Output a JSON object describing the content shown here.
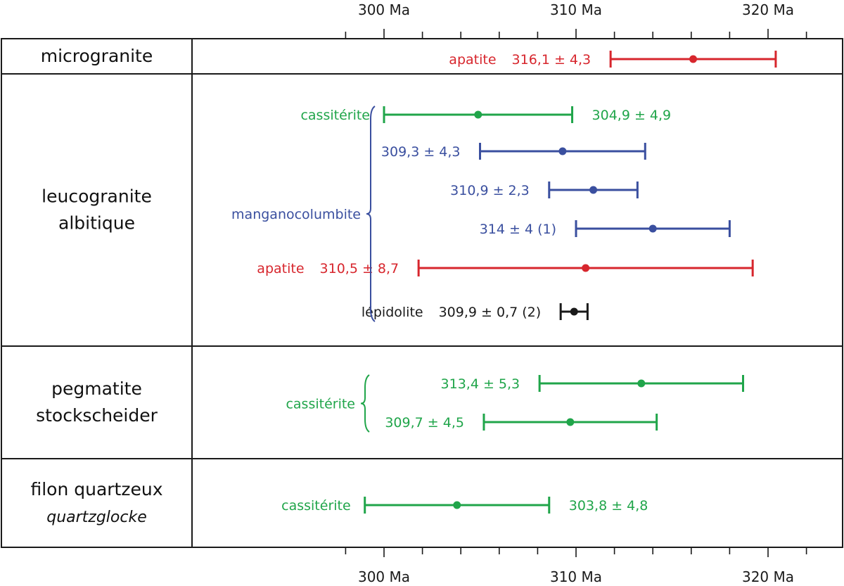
{
  "chart_data": {
    "type": "interval",
    "x_unit": "Ma",
    "xlim": [
      296,
      323
    ],
    "major_ticks": [
      300,
      310,
      320
    ],
    "minor_ticks": [
      298,
      302,
      304,
      306,
      308,
      312,
      314,
      316,
      318,
      322
    ],
    "tick_labels": [
      "300 Ma",
      "310 Ma",
      "320 Ma"
    ],
    "color_legend_implicit": {
      "apatite": "#d7262d",
      "cassiterite": "#20a54a",
      "manganocolumbite": "#3a4f9f",
      "lepidolite": "#1a1a1a"
    },
    "sections": [
      {
        "lines": [
          "microgranite"
        ],
        "items": [
          {
            "mineral": "apatite",
            "value": 316.1,
            "error": 4.3,
            "label": "316,1 ± 4,3",
            "color": "#d7262d",
            "show_mineral": true
          }
        ]
      },
      {
        "lines": [
          "leucogranite",
          "albitique"
        ],
        "items": [
          {
            "mineral": "cassitérite",
            "value": 304.9,
            "error": 4.9,
            "label": "304,9 ± 4,9",
            "color": "#20a54a",
            "show_mineral": true
          },
          {
            "mineral": "manganocolumbite",
            "value": 309.3,
            "error": 4.3,
            "label": "309,3 ± 4,3",
            "color": "#3a4f9f",
            "show_mineral": false
          },
          {
            "mineral": "manganocolumbite",
            "value": 310.9,
            "error": 2.3,
            "label": "310,9 ± 2,3",
            "color": "#3a4f9f",
            "show_mineral": false
          },
          {
            "mineral": "manganocolumbite",
            "value": 314,
            "error": 4,
            "label": "314 ± 4 (1)",
            "color": "#3a4f9f",
            "show_mineral": false
          },
          {
            "mineral": "apatite",
            "value": 310.5,
            "error": 8.7,
            "label": "310,5 ± 8,7",
            "color": "#d7262d",
            "show_mineral": true
          },
          {
            "mineral": "lépidolite",
            "value": 309.9,
            "error": 0.7,
            "label": "309,9 ± 0,7 (2)",
            "color": "#1a1a1a",
            "show_mineral": true
          }
        ],
        "group_label": {
          "text": "manganocolumbite",
          "color": "#3a4f9f"
        }
      },
      {
        "lines": [
          "pegmatite",
          "stockscheider"
        ],
        "items": [
          {
            "mineral": "cassitérite",
            "value": 313.4,
            "error": 5.3,
            "label": "313,4 ± 5,3",
            "color": "#20a54a",
            "show_mineral": false
          },
          {
            "mineral": "cassitérite",
            "value": 309.7,
            "error": 4.5,
            "label": "309,7 ± 4,5",
            "color": "#20a54a",
            "show_mineral": false
          }
        ],
        "group_label": {
          "text": "cassitérite",
          "color": "#20a54a"
        }
      },
      {
        "lines": [
          "filon quartzeux",
          "quartzglocke"
        ],
        "italic_line": 1,
        "items": [
          {
            "mineral": "cassitérite",
            "value": 303.8,
            "error": 4.8,
            "label": "303,8 ± 4,8",
            "color": "#20a54a",
            "show_mineral": true
          }
        ]
      }
    ]
  }
}
